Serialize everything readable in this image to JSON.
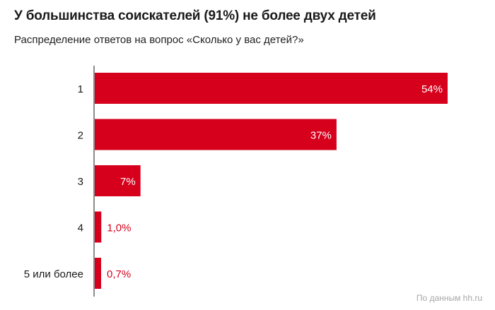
{
  "title": "У большинства соискателей (91%) не более двух детей",
  "subtitle": "Распределение ответов на вопрос «Сколько у вас детей?»",
  "source": "По данным hh.ru",
  "colors": {
    "bar": "#d6001c",
    "axis": "#1a1a1a",
    "label_inside": "#ffffff"
  },
  "chart_data": {
    "type": "bar",
    "orientation": "horizontal",
    "categories": [
      "1",
      "2",
      "3",
      "4",
      "5 или более"
    ],
    "values": [
      54,
      37,
      7,
      1.0,
      0.7
    ],
    "value_labels": [
      "54%",
      "37%",
      "7%",
      "1,0%",
      "0,7%"
    ],
    "xlim": [
      0,
      54
    ],
    "grid": false,
    "title": "У большинства соискателей (91%) не более двух детей",
    "xlabel": "",
    "ylabel": ""
  }
}
